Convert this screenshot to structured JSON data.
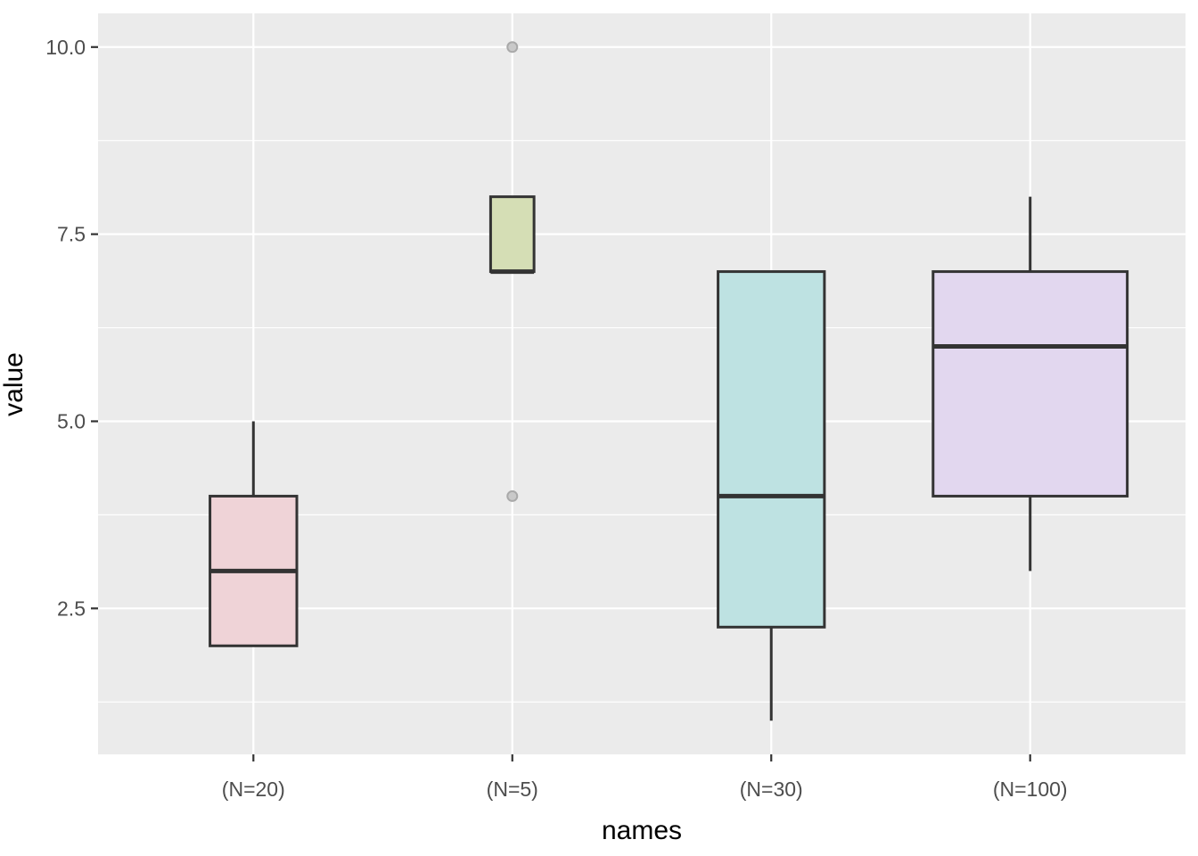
{
  "chart_data": {
    "type": "boxplot",
    "title": "",
    "xlabel": "names",
    "ylabel": "value",
    "categories": [
      "(N=20)",
      "(N=5)",
      "(N=30)",
      "(N=100)"
    ],
    "y_ticks": [
      2.5,
      5.0,
      7.5,
      10.0
    ],
    "y_tick_labels": [
      "2.5",
      "5.0",
      "7.5",
      "10.0"
    ],
    "ylim": [
      0.55,
      10.45
    ],
    "x_domain": [
      0.4,
      4.6
    ],
    "grid": "white major and minor horizontal gridlines, white vertical gridline per category, on grey panel",
    "legend": "none",
    "varwidth": true,
    "max_box_width_fraction": 0.75,
    "groups": [
      {
        "name": "(N=20)",
        "n": 20,
        "min": 2,
        "q1": 2,
        "median": 3,
        "q3": 4,
        "max": 5,
        "outliers": [],
        "fill": "#efd3d7"
      },
      {
        "name": "(N=5)",
        "n": 5,
        "min": 7,
        "q1": 7,
        "median": 7,
        "q3": 8,
        "max": 8,
        "outliers": [
          10,
          4
        ],
        "fill": "#d5deb5"
      },
      {
        "name": "(N=30)",
        "n": 30,
        "min": 1,
        "q1": 2.25,
        "median": 4,
        "q3": 7,
        "max": 7,
        "outliers": [],
        "fill": "#bee2e2"
      },
      {
        "name": "(N=100)",
        "n": 100,
        "min": 3,
        "q1": 4,
        "median": 6,
        "q3": 7,
        "max": 8,
        "outliers": [],
        "fill": "#e2d7ef"
      }
    ],
    "colors": {
      "figure_bg": "#ffffff",
      "panel_bg": "#ebebeb",
      "grid": "#ffffff",
      "box_stroke": "#333333",
      "outlier_fill": "#c9c9c9",
      "outlier_stroke": "#a9a9a9",
      "tick_mark": "#333333",
      "tick_label": "#4d4d4d",
      "axis_title": "#000000"
    }
  }
}
